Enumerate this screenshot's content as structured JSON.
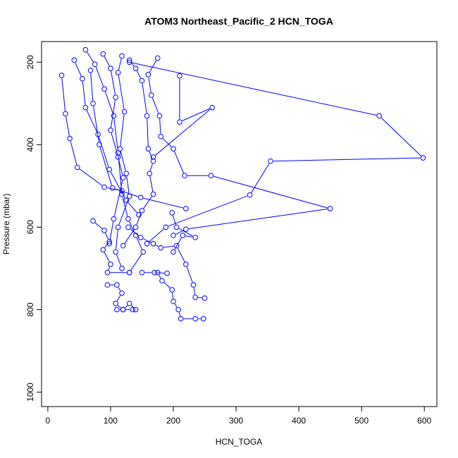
{
  "chart_data": {
    "type": "line",
    "title": "ATOM3 Northeast_Pacific_2 HCN_TOGA",
    "xlabel": "HCN_TOGA",
    "ylabel": "Pressure (mbar)",
    "xlim": [
      -10,
      620
    ],
    "ylim": [
      1035,
      150
    ],
    "y_reversed": true,
    "xticks": [
      0,
      100,
      200,
      300,
      400,
      500,
      600
    ],
    "yticks": [
      200,
      400,
      600,
      800,
      1000
    ],
    "series_color": "#0000ff",
    "marker": "open-circle",
    "series": [
      {
        "values": [
          [
            22,
            232
          ],
          [
            28,
            325
          ],
          [
            35,
            385
          ],
          [
            47,
            455
          ],
          [
            90,
            503
          ],
          [
            118,
            512
          ]
        ]
      },
      {
        "values": [
          [
            42,
            195
          ],
          [
            55,
            240
          ],
          [
            60,
            310
          ],
          [
            80,
            375
          ],
          [
            98,
            460
          ],
          [
            125,
            535
          ],
          [
            145,
            570
          ]
        ]
      },
      {
        "values": [
          [
            68,
            220
          ],
          [
            72,
            300
          ],
          [
            82,
            400
          ],
          [
            103,
            505
          ],
          [
            148,
            528
          ],
          [
            220,
            555
          ]
        ]
      },
      {
        "values": [
          [
            60,
            170
          ],
          [
            75,
            205
          ],
          [
            90,
            265
          ],
          [
            105,
            330
          ],
          [
            112,
            420
          ],
          [
            118,
            520
          ],
          [
            128,
            580
          ],
          [
            140,
            620
          ],
          [
            152,
            660
          ],
          [
            130,
            710
          ]
        ]
      },
      {
        "values": [
          [
            88,
            180
          ],
          [
            100,
            215
          ],
          [
            108,
            285
          ],
          [
            100,
            365
          ],
          [
            112,
            430
          ],
          [
            120,
            480
          ],
          [
            105,
            580
          ],
          [
            98,
            640
          ]
        ]
      },
      {
        "values": [
          [
            118,
            185
          ],
          [
            112,
            225
          ],
          [
            122,
            320
          ],
          [
            115,
            410
          ],
          [
            125,
            470
          ],
          [
            130,
            525
          ],
          [
            112,
            600
          ],
          [
            108,
            660
          ],
          [
            118,
            700
          ]
        ]
      },
      {
        "values": [
          [
            130,
            195
          ],
          [
            140,
            215
          ],
          [
            150,
            245
          ],
          [
            158,
            330
          ],
          [
            160,
            410
          ],
          [
            168,
            440
          ],
          [
            162,
            470
          ],
          [
            168,
            520
          ],
          [
            150,
            560
          ],
          [
            140,
            600
          ],
          [
            120,
            645
          ]
        ]
      },
      {
        "values": [
          [
            175,
            190
          ],
          [
            160,
            230
          ],
          [
            165,
            280
          ],
          [
            178,
            330
          ],
          [
            180,
            380
          ],
          [
            200,
            410
          ],
          [
            218,
            475
          ],
          [
            260,
            475
          ],
          [
            450,
            555
          ],
          [
            220,
            605
          ],
          [
            200,
            620
          ]
        ]
      },
      {
        "values": [
          [
            210,
            233
          ],
          [
            210,
            345
          ],
          [
            262,
            310
          ],
          [
            168,
            430
          ]
        ]
      },
      {
        "values": [
          [
            130,
            200
          ],
          [
            528,
            330
          ],
          [
            598,
            432
          ],
          [
            355,
            440
          ],
          [
            322,
            522
          ],
          [
            188,
            600
          ],
          [
            158,
            640
          ]
        ]
      },
      {
        "values": [
          [
            72,
            585
          ],
          [
            90,
            608
          ],
          [
            98,
            635
          ],
          [
            88,
            655
          ],
          [
            100,
            690
          ],
          [
            95,
            710
          ],
          [
            130,
            710
          ]
        ]
      },
      {
        "values": [
          [
            128,
            600
          ],
          [
            148,
            625
          ],
          [
            168,
            640
          ],
          [
            180,
            650
          ],
          [
            205,
            645
          ],
          [
            220,
            690
          ],
          [
            232,
            740
          ],
          [
            235,
            770
          ],
          [
            250,
            772
          ]
        ]
      },
      {
        "values": [
          [
            95,
            740
          ],
          [
            110,
            740
          ],
          [
            118,
            760
          ],
          [
            108,
            785
          ],
          [
            120,
            800
          ],
          [
            135,
            800
          ]
        ]
      },
      {
        "values": [
          [
            175,
            710
          ],
          [
            182,
            730
          ],
          [
            198,
            752
          ],
          [
            200,
            780
          ],
          [
            208,
            800
          ],
          [
            212,
            822
          ],
          [
            235,
            822
          ],
          [
            248,
            822
          ]
        ]
      },
      {
        "values": [
          [
            110,
            800
          ],
          [
            120,
            800
          ],
          [
            130,
            785
          ],
          [
            140,
            800
          ]
        ]
      },
      {
        "values": [
          [
            150,
            710
          ],
          [
            170,
            710
          ],
          [
            190,
            712
          ]
        ]
      },
      {
        "values": [
          [
            200,
            660
          ],
          [
            215,
            620
          ],
          [
            235,
            625
          ],
          [
            205,
            600
          ],
          [
            198,
            565
          ]
        ]
      }
    ]
  }
}
